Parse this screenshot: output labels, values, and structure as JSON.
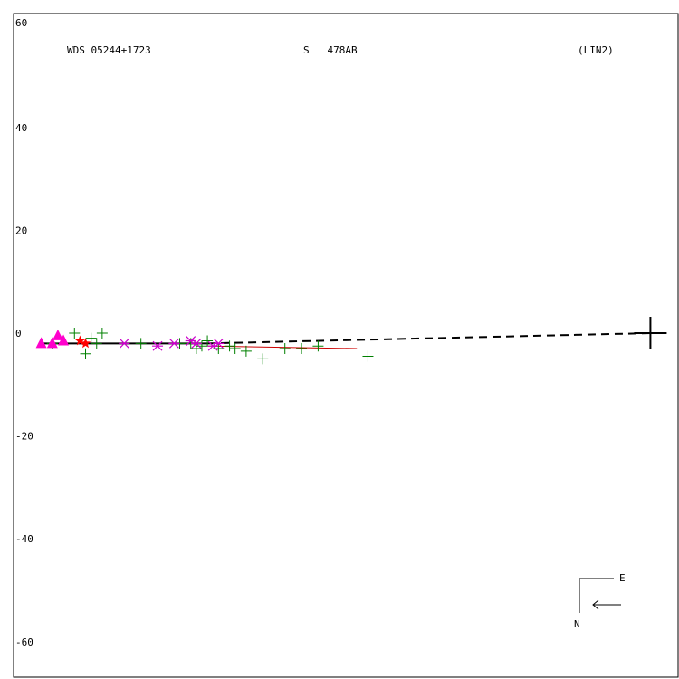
{
  "header": {
    "wds_id": "WDS 05244+1723",
    "discoverer": "S   478AB",
    "orbit_code": "(LIN2)"
  },
  "compass": {
    "east_label": "E",
    "north_label": "N"
  },
  "chart_data": {
    "type": "scatter",
    "title": "",
    "xlabel": "",
    "ylabel": "",
    "xlim": [
      -60,
      60
    ],
    "ylim": [
      -60,
      60
    ],
    "yticks": [
      60,
      40,
      20,
      0,
      -20,
      -40,
      -60
    ],
    "ytick_labels": [
      "60",
      "40",
      "20",
      "0",
      "-20",
      "-40",
      "-60"
    ],
    "grid": false,
    "colors": {
      "plus_markers": "#008000",
      "asterisk_markers": "#cc00cc",
      "triangle_markers": "#ff00cc",
      "star_markers": "#ff0000",
      "fit_line": "#000000",
      "residual_line": "#cc0000"
    },
    "primary": {
      "x": 55,
      "y": 0
    },
    "fit_line": {
      "solid": [
        [
          -55,
          -2
        ],
        [
          -25,
          -2
        ]
      ],
      "dashed": [
        [
          -25,
          -2
        ],
        [
          55,
          0
        ]
      ]
    },
    "residual_line": [
      [
        -25,
        -2.5
      ],
      [
        2,
        -3
      ]
    ],
    "series": [
      {
        "marker": "plus",
        "points": [
          [
            -53,
            -2
          ],
          [
            -49,
            0
          ],
          [
            -47,
            -4
          ],
          [
            -46,
            -1
          ],
          [
            -45,
            -2
          ],
          [
            -44,
            0
          ],
          [
            -37,
            -2
          ],
          [
            -30,
            -2
          ],
          [
            -28,
            -2
          ],
          [
            -27,
            -3
          ],
          [
            -26,
            -2.5
          ],
          [
            -25,
            -1.5
          ],
          [
            -23,
            -3
          ],
          [
            -21,
            -2.5
          ],
          [
            -20,
            -3
          ],
          [
            -18,
            -3.5
          ],
          [
            -15,
            -5
          ],
          [
            -11,
            -3
          ],
          [
            -8,
            -3
          ],
          [
            -5,
            -2.5
          ],
          [
            4,
            -4.5
          ]
        ]
      },
      {
        "marker": "asterisk",
        "points": [
          [
            -40,
            -2
          ],
          [
            -34,
            -2.5
          ],
          [
            -31,
            -2
          ],
          [
            -28,
            -1.5
          ],
          [
            -27,
            -2
          ],
          [
            -24,
            -2.5
          ],
          [
            -23,
            -2
          ]
        ]
      },
      {
        "marker": "triangle",
        "points": [
          [
            -55,
            -2
          ],
          [
            -53,
            -2
          ],
          [
            -52,
            -0.5
          ],
          [
            -51,
            -1.5
          ]
        ]
      },
      {
        "marker": "star",
        "points": [
          [
            -48,
            -1.5
          ],
          [
            -47,
            -2
          ]
        ]
      }
    ]
  }
}
